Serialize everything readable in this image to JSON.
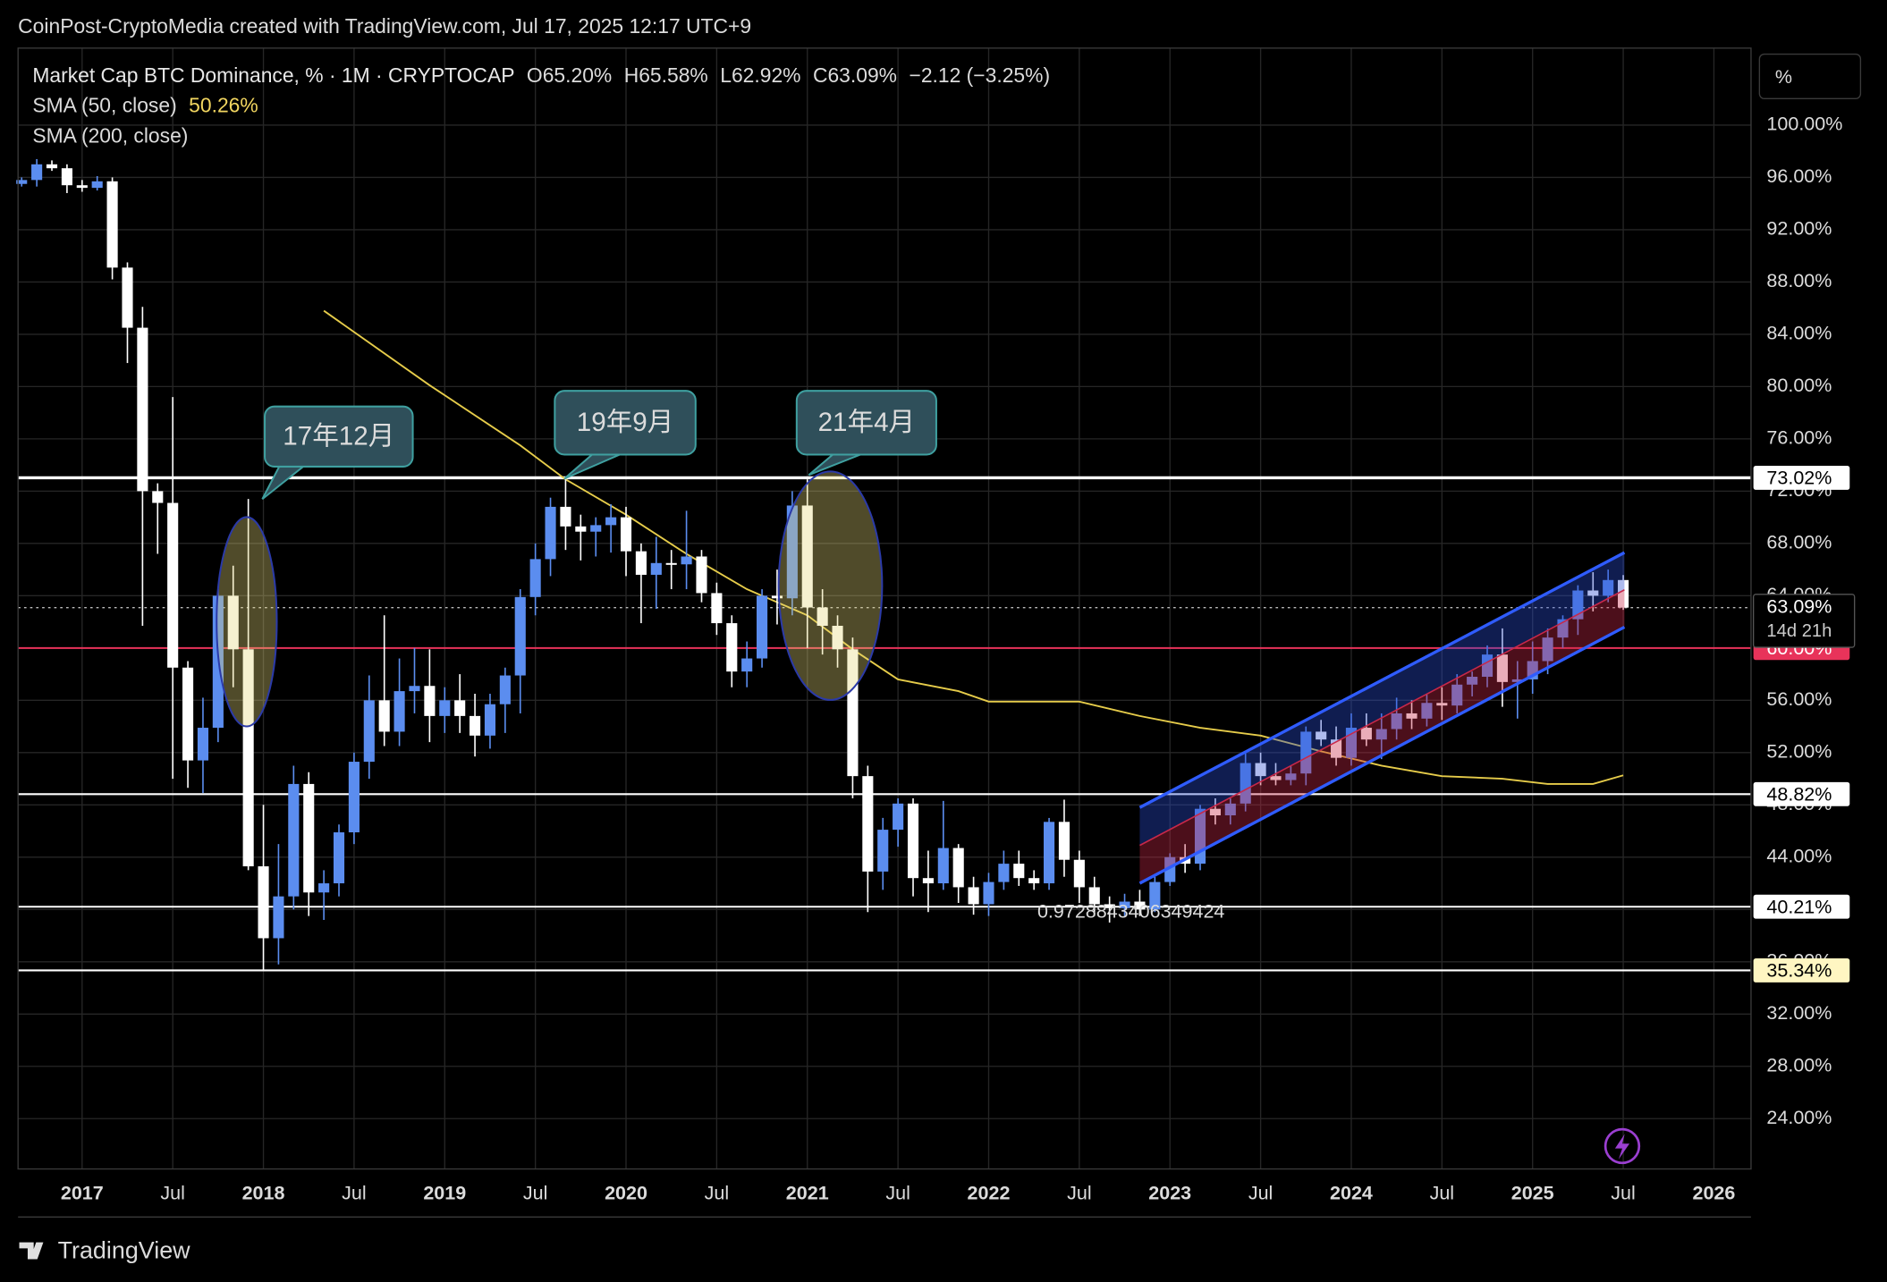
{
  "header": "CoinPost-CryptoMedia created with TradingView.com, Jul 17, 2025 12:17 UTC+9",
  "footer": "TradingView",
  "chart_data": {
    "type": "candlestick",
    "legend": {
      "symbol": "Market Cap BTC Dominance, % · 1M · CRYPTOCAP",
      "open": "O65.20%",
      "high": "H65.58%",
      "low": "L62.92%",
      "close": "C63.09%",
      "change": "−2.12 (−3.25%)",
      "sma50": "SMA (50, close)",
      "sma50_value": "50.26%",
      "sma200": "SMA (200, close)"
    },
    "scale_unit": "%",
    "up_color": "#5b8def",
    "down_color": "#ffffff",
    "categories": [
      "2016-09",
      "2016-10",
      "2016-11",
      "2016-12",
      "2017-01",
      "2017-02",
      "2017-03",
      "2017-04",
      "2017-05",
      "2017-06",
      "2017-07",
      "2017-08",
      "2017-09",
      "2017-10",
      "2017-11",
      "2017-12",
      "2018-01",
      "2018-02",
      "2018-03",
      "2018-04",
      "2018-05",
      "2018-06",
      "2018-07",
      "2018-08",
      "2018-09",
      "2018-10",
      "2018-11",
      "2018-12",
      "2019-01",
      "2019-02",
      "2019-03",
      "2019-04",
      "2019-05",
      "2019-06",
      "2019-07",
      "2019-08",
      "2019-09",
      "2019-10",
      "2019-11",
      "2019-12",
      "2020-01",
      "2020-02",
      "2020-03",
      "2020-04",
      "2020-05",
      "2020-06",
      "2020-07",
      "2020-08",
      "2020-09",
      "2020-10",
      "2020-11",
      "2020-12",
      "2021-01",
      "2021-02",
      "2021-03",
      "2021-04",
      "2021-05",
      "2021-06",
      "2021-07",
      "2021-08",
      "2021-09",
      "2021-10",
      "2021-11",
      "2021-12",
      "2022-01",
      "2022-02",
      "2022-03",
      "2022-04",
      "2022-05",
      "2022-06",
      "2022-07",
      "2022-08",
      "2022-09",
      "2022-10",
      "2022-11",
      "2022-12",
      "2023-01",
      "2023-02",
      "2023-03",
      "2023-04",
      "2023-05",
      "2023-06",
      "2023-07",
      "2023-08",
      "2023-09",
      "2023-10",
      "2023-11",
      "2023-12",
      "2024-01",
      "2024-02",
      "2024-03",
      "2024-04",
      "2024-05",
      "2024-06",
      "2024-07",
      "2024-08",
      "2024-09",
      "2024-10",
      "2024-11",
      "2024-12",
      "2025-01",
      "2025-02",
      "2025-03",
      "2025-04",
      "2025-05",
      "2025-06",
      "2025-07"
    ],
    "open": [
      95.5,
      95.8,
      97.0,
      96.7,
      95.4,
      95.2,
      95.7,
      89.1,
      84.5,
      72.0,
      71.1,
      58.5,
      51.4,
      53.9,
      64.0,
      59.9,
      43.3,
      37.8,
      41.0,
      49.6,
      41.3,
      42.0,
      45.9,
      51.3,
      56.0,
      53.6,
      56.7,
      57.1,
      54.8,
      56.0,
      54.8,
      53.3,
      55.7,
      57.9,
      63.9,
      66.8,
      70.8,
      69.3,
      68.9,
      69.4,
      70.0,
      67.4,
      65.6,
      66.5,
      66.4,
      67.0,
      64.2,
      61.9,
      58.2,
      59.2,
      64.0,
      63.8,
      70.9,
      63.1,
      61.7,
      59.9,
      50.2,
      42.9,
      46.1,
      48.1,
      42.4,
      42.0,
      44.7,
      41.7,
      40.4,
      42.1,
      43.5,
      42.4,
      42.0,
      46.7,
      43.8,
      41.7,
      40.4,
      40.1,
      40.6,
      40.0,
      42.1,
      44.0,
      43.5,
      47.7,
      47.2,
      48.1,
      51.2,
      50.2,
      49.9,
      50.4,
      53.6,
      53.0,
      51.6,
      53.9,
      53.0,
      53.8,
      55.0,
      54.6,
      55.8,
      55.6,
      57.2,
      57.8,
      59.5,
      57.4,
      57.6,
      59.0,
      60.8,
      62.2,
      64.4,
      64.0,
      65.2
    ],
    "high": [
      96.0,
      97.4,
      97.3,
      97.0,
      95.8,
      96.1,
      96.0,
      89.5,
      86.1,
      72.6,
      79.2,
      59.0,
      56.2,
      64.5,
      66.3,
      71.4,
      48.0,
      45.0,
      51.0,
      50.5,
      43.0,
      46.5,
      52.0,
      57.9,
      62.5,
      59.2,
      60.0,
      59.9,
      57.0,
      58.0,
      56.5,
      56.5,
      58.5,
      64.5,
      68.0,
      71.5,
      72.9,
      70.2,
      70.0,
      71.0,
      70.8,
      68.0,
      68.5,
      67.5,
      70.5,
      67.5,
      65.0,
      62.5,
      60.5,
      64.5,
      66.0,
      72.0,
      72.9,
      64.5,
      62.5,
      60.8,
      51.0,
      47.0,
      48.5,
      48.5,
      44.5,
      48.3,
      45.0,
      42.5,
      42.8,
      44.5,
      44.5,
      43.0,
      47.0,
      48.4,
      44.5,
      42.5,
      41.0,
      41.2,
      41.5,
      42.5,
      44.3,
      45.0,
      48.0,
      48.5,
      48.5,
      52.0,
      52.0,
      51.2,
      51.0,
      54.0,
      54.5,
      54.0,
      55.0,
      55.0,
      55.0,
      56.2,
      56.0,
      56.5,
      57.0,
      58.0,
      58.2,
      60.2,
      61.5,
      59.0,
      60.5,
      61.5,
      62.5,
      64.8,
      65.8,
      66.0,
      65.58
    ],
    "low": [
      95.3,
      95.3,
      96.5,
      94.8,
      94.9,
      95.0,
      88.2,
      81.8,
      61.7,
      67.2,
      50.0,
      49.3,
      48.9,
      52.8,
      57.0,
      43.0,
      35.3,
      35.8,
      40.0,
      39.5,
      39.2,
      41.0,
      45.0,
      50.0,
      52.5,
      52.5,
      55.0,
      52.8,
      53.5,
      53.5,
      51.7,
      52.3,
      53.5,
      55.0,
      62.5,
      65.5,
      67.5,
      66.7,
      67.0,
      67.3,
      65.5,
      61.9,
      63.0,
      64.5,
      64.5,
      63.5,
      61.0,
      57.0,
      57.0,
      58.5,
      61.8,
      62.5,
      60.0,
      59.5,
      58.5,
      48.5,
      39.8,
      41.5,
      44.8,
      41.0,
      39.8,
      41.5,
      40.5,
      39.6,
      39.5,
      41.5,
      41.8,
      41.5,
      41.5,
      42.5,
      40.5,
      39.5,
      39.0,
      39.5,
      39.5,
      39.8,
      41.8,
      42.8,
      43.0,
      46.5,
      46.5,
      47.5,
      49.5,
      49.5,
      49.5,
      49.5,
      52.5,
      51.0,
      51.0,
      52.5,
      51.5,
      53.0,
      53.8,
      54.0,
      54.5,
      55.0,
      56.3,
      57.0,
      55.5,
      54.6,
      56.5,
      58.0,
      60.0,
      61.0,
      62.8,
      63.5,
      62.92
    ],
    "close": [
      95.8,
      97.0,
      96.7,
      95.4,
      95.2,
      95.7,
      89.1,
      84.5,
      72.0,
      71.1,
      58.5,
      51.4,
      53.9,
      64.0,
      59.9,
      43.3,
      37.8,
      41.0,
      49.6,
      41.3,
      42.0,
      45.9,
      51.3,
      56.0,
      53.6,
      56.7,
      57.1,
      54.8,
      56.0,
      54.8,
      53.3,
      55.7,
      57.9,
      63.9,
      66.8,
      70.8,
      69.3,
      68.9,
      69.4,
      70.0,
      67.4,
      65.6,
      66.5,
      66.4,
      67.0,
      64.2,
      61.9,
      58.2,
      59.2,
      64.0,
      63.8,
      70.9,
      63.1,
      61.7,
      59.9,
      50.2,
      42.9,
      46.1,
      48.1,
      42.4,
      42.0,
      44.7,
      41.7,
      40.4,
      42.1,
      43.5,
      42.4,
      42.0,
      46.7,
      43.8,
      41.7,
      40.4,
      40.1,
      40.6,
      40.0,
      42.1,
      44.0,
      43.5,
      47.7,
      47.2,
      48.1,
      51.2,
      50.2,
      49.9,
      50.4,
      53.6,
      53.0,
      51.6,
      53.9,
      53.0,
      53.8,
      55.0,
      54.6,
      55.8,
      55.6,
      57.2,
      57.8,
      59.5,
      57.4,
      57.6,
      59.0,
      60.8,
      62.2,
      64.4,
      64.0,
      65.2,
      63.09
    ],
    "sma": {
      "color": "#e6cc4a",
      "x": [
        "2018-05",
        "2018-12",
        "2019-06",
        "2019-09",
        "2020-01",
        "2020-05",
        "2020-09",
        "2021-01",
        "2021-04",
        "2021-07",
        "2021-11",
        "2022-01",
        "2022-07",
        "2022-11",
        "2023-03",
        "2023-07",
        "2023-11",
        "2024-03",
        "2024-07",
        "2024-11",
        "2025-02",
        "2025-05",
        "2025-07"
      ],
      "values": [
        85.8,
        80.1,
        75.5,
        72.9,
        70.2,
        67.2,
        64.5,
        62.5,
        59.9,
        57.6,
        56.7,
        55.9,
        55.9,
        54.8,
        53.9,
        53.3,
        52.1,
        51.0,
        50.2,
        50.0,
        49.6,
        49.6,
        50.26
      ]
    },
    "channel": {
      "start": "2022-11",
      "end": "2025-07",
      "upper": [
        47.8,
        67.3
      ],
      "middle": [
        44.9,
        64.45
      ],
      "lower": [
        42.0,
        61.6
      ]
    },
    "ylim": [
      20.15,
      105.89
    ],
    "yticks": [
      {
        "value": 24,
        "label": "24.00%"
      },
      {
        "value": 28,
        "label": "28.00%"
      },
      {
        "value": 32,
        "label": "32.00%"
      },
      {
        "value": 36,
        "label": "36.00%"
      },
      {
        "value": 40,
        "label": "40.00%"
      },
      {
        "value": 44,
        "label": "44.00%"
      },
      {
        "value": 48,
        "label": "48.00%"
      },
      {
        "value": 52,
        "label": "52.00%"
      },
      {
        "value": 56,
        "label": "56.00%"
      },
      {
        "value": 60,
        "label": "60.00%"
      },
      {
        "value": 64,
        "label": "64.00%"
      },
      {
        "value": 68,
        "label": "68.00%"
      },
      {
        "value": 72,
        "label": "72.00%"
      },
      {
        "value": 76,
        "label": "76.00%"
      },
      {
        "value": 80,
        "label": "80.00%"
      },
      {
        "value": 84,
        "label": "84.00%"
      },
      {
        "value": 88,
        "label": "88.00%"
      },
      {
        "value": 92,
        "label": "92.00%"
      },
      {
        "value": 96,
        "label": "96.00%"
      },
      {
        "value": 100,
        "label": "100.00%"
      }
    ],
    "xticks": [
      {
        "value": "2017-01",
        "label": "2017"
      },
      {
        "value": "2017-07",
        "label": "Jul"
      },
      {
        "value": "2018-01",
        "label": "2018"
      },
      {
        "value": "2018-07",
        "label": "Jul"
      },
      {
        "value": "2019-01",
        "label": "2019"
      },
      {
        "value": "2019-07",
        "label": "Jul"
      },
      {
        "value": "2020-01",
        "label": "2020"
      },
      {
        "value": "2020-07",
        "label": "Jul"
      },
      {
        "value": "2021-01",
        "label": "2021"
      },
      {
        "value": "2021-07",
        "label": "Jul"
      },
      {
        "value": "2022-01",
        "label": "2022"
      },
      {
        "value": "2022-07",
        "label": "Jul"
      },
      {
        "value": "2023-01",
        "label": "2023"
      },
      {
        "value": "2023-07",
        "label": "Jul"
      },
      {
        "value": "2024-01",
        "label": "2024"
      },
      {
        "value": "2024-07",
        "label": "Jul"
      },
      {
        "value": "2025-01",
        "label": "2025"
      },
      {
        "value": "2025-07",
        "label": "Jul"
      },
      {
        "value": "2026-01",
        "label": "2026"
      }
    ],
    "grid": true,
    "price_lines": [
      {
        "value": 73.02,
        "label": "73.02%",
        "color": "#ffffff",
        "label_bg": "#ffffff",
        "label_fg": "#000000"
      },
      {
        "value": 60.0,
        "label": "60.00%",
        "color": "#e8335a",
        "label_bg": "#e8335a",
        "label_fg": "#ffffff"
      },
      {
        "value": 48.82,
        "label": "48.82%",
        "color": "#ffffff",
        "label_bg": "#ffffff",
        "label_fg": "#000000"
      },
      {
        "value": 40.21,
        "label": "40.21%",
        "color": "#ffffff",
        "label_bg": "#ffffff",
        "label_fg": "#000000"
      },
      {
        "value": 35.34,
        "label": "35.34%",
        "color": "#ffffff",
        "label_bg": "#fff6c2",
        "label_fg": "#000000"
      }
    ],
    "last_price": {
      "value": 63.09,
      "label": "63.09%",
      "countdown": "14d 21h"
    },
    "annotations": [
      {
        "text": "17年12月"
      },
      {
        "text": "19年9月"
      },
      {
        "text": "21年4月"
      },
      {
        "text": "0.9728843406349424"
      }
    ]
  }
}
